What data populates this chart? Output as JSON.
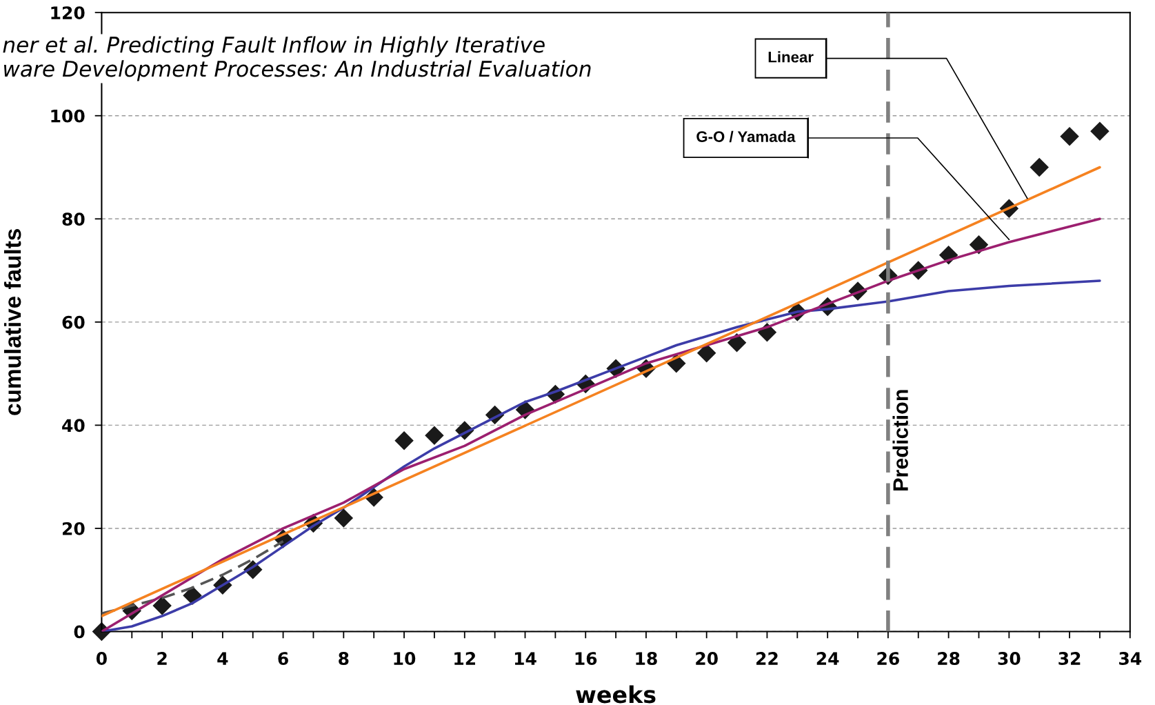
{
  "chart_data": {
    "type": "line",
    "xlabel": "weeks",
    "ylabel": "cumulative faults",
    "xlim": [
      0,
      34
    ],
    "ylim": [
      0,
      120
    ],
    "xticks": [
      0,
      {
        "value": 1,
        "label": null
      },
      2,
      {
        "value": 3,
        "label": null
      },
      4,
      {
        "value": 5,
        "label": null
      },
      6,
      {
        "value": 7,
        "label": null
      },
      8,
      {
        "value": 9,
        "label": null
      },
      10,
      {
        "value": 11,
        "label": null
      },
      12,
      {
        "value": 13,
        "label": null
      },
      14,
      {
        "value": 15,
        "label": null
      },
      16,
      {
        "value": 17,
        "label": null
      },
      18,
      {
        "value": 19,
        "label": null
      },
      20,
      {
        "value": 21,
        "label": null
      },
      22,
      {
        "value": 23,
        "label": null
      },
      24,
      {
        "value": 25,
        "label": null
      },
      26,
      {
        "value": 27,
        "label": null
      },
      28,
      {
        "value": 29,
        "label": null
      },
      30,
      {
        "value": 31,
        "label": null
      },
      32,
      {
        "value": 33,
        "label": null
      },
      34
    ],
    "yticks": [
      0,
      20,
      40,
      60,
      80,
      100,
      120
    ],
    "grid": "y",
    "series": [
      {
        "color": "#3c3ca8",
        "marker": "none",
        "line_style": "solid",
        "x": [
          0,
          1,
          2,
          3,
          4,
          5,
          6,
          7,
          8,
          9,
          10,
          11,
          12,
          13,
          14,
          15,
          17,
          19,
          21,
          23,
          24,
          26,
          28,
          30,
          33
        ],
        "values": [
          0,
          1,
          3,
          5.5,
          9,
          12.5,
          16.5,
          20.5,
          24,
          28,
          32,
          35.5,
          38.5,
          41.5,
          44.5,
          46.5,
          51,
          55.5,
          59,
          62,
          62.5,
          64,
          66,
          67,
          68
        ]
      },
      {
        "color": "#555555",
        "marker": "none",
        "line_style": "dashed",
        "x": [
          0,
          1,
          2,
          3,
          4,
          5,
          6
        ],
        "values": [
          3.5,
          5,
          6.5,
          8.5,
          11,
          14,
          17.5
        ]
      },
      {
        "color": "#9c1f6f",
        "marker": "none",
        "line_style": "solid",
        "x": [
          0,
          2,
          4,
          6,
          8,
          10,
          12,
          14,
          16,
          18,
          20,
          22,
          24,
          26,
          28,
          30,
          33
        ],
        "values": [
          0,
          7,
          14,
          20,
          25,
          31.5,
          36,
          42,
          47,
          52,
          55.5,
          59,
          63.5,
          68,
          72,
          75.5,
          80
        ]
      },
      {
        "color": "#f58220",
        "marker": "none",
        "line_style": "solid",
        "x": [
          0,
          33
        ],
        "values": [
          3,
          90
        ]
      },
      {
        "type": "scatter",
        "color": "#1a1a1a",
        "marker": "diamond",
        "x": [
          0,
          1,
          2,
          3,
          4,
          5,
          6,
          7,
          8,
          9,
          10,
          11,
          12,
          13,
          14,
          15,
          16,
          17,
          18,
          19,
          20,
          21,
          22,
          23,
          24,
          25,
          26,
          27,
          28,
          29,
          30,
          31,
          32,
          33
        ],
        "values": [
          0,
          4,
          5,
          7,
          9,
          12,
          18,
          21,
          22,
          26,
          37,
          38,
          39,
          42,
          43,
          46,
          48,
          51,
          51,
          52,
          54,
          56,
          58,
          62,
          63,
          66,
          69,
          70,
          73,
          75,
          82,
          90,
          96,
          97
        ]
      }
    ],
    "ref_lines": [
      {
        "axis": "x",
        "value": 26,
        "label": "Prediction",
        "color": "#808080",
        "line_style": "dashed"
      }
    ],
    "annotations": [
      "ner et al. Predicting Fault Inflow in Highly Iterative\nware Development Processes: An Industrial Evaluation",
      {
        "text": "Linear",
        "x": 30.6,
        "y": 84
      },
      {
        "text": "G-O / Yamada",
        "x": 30,
        "y": 76
      }
    ]
  }
}
